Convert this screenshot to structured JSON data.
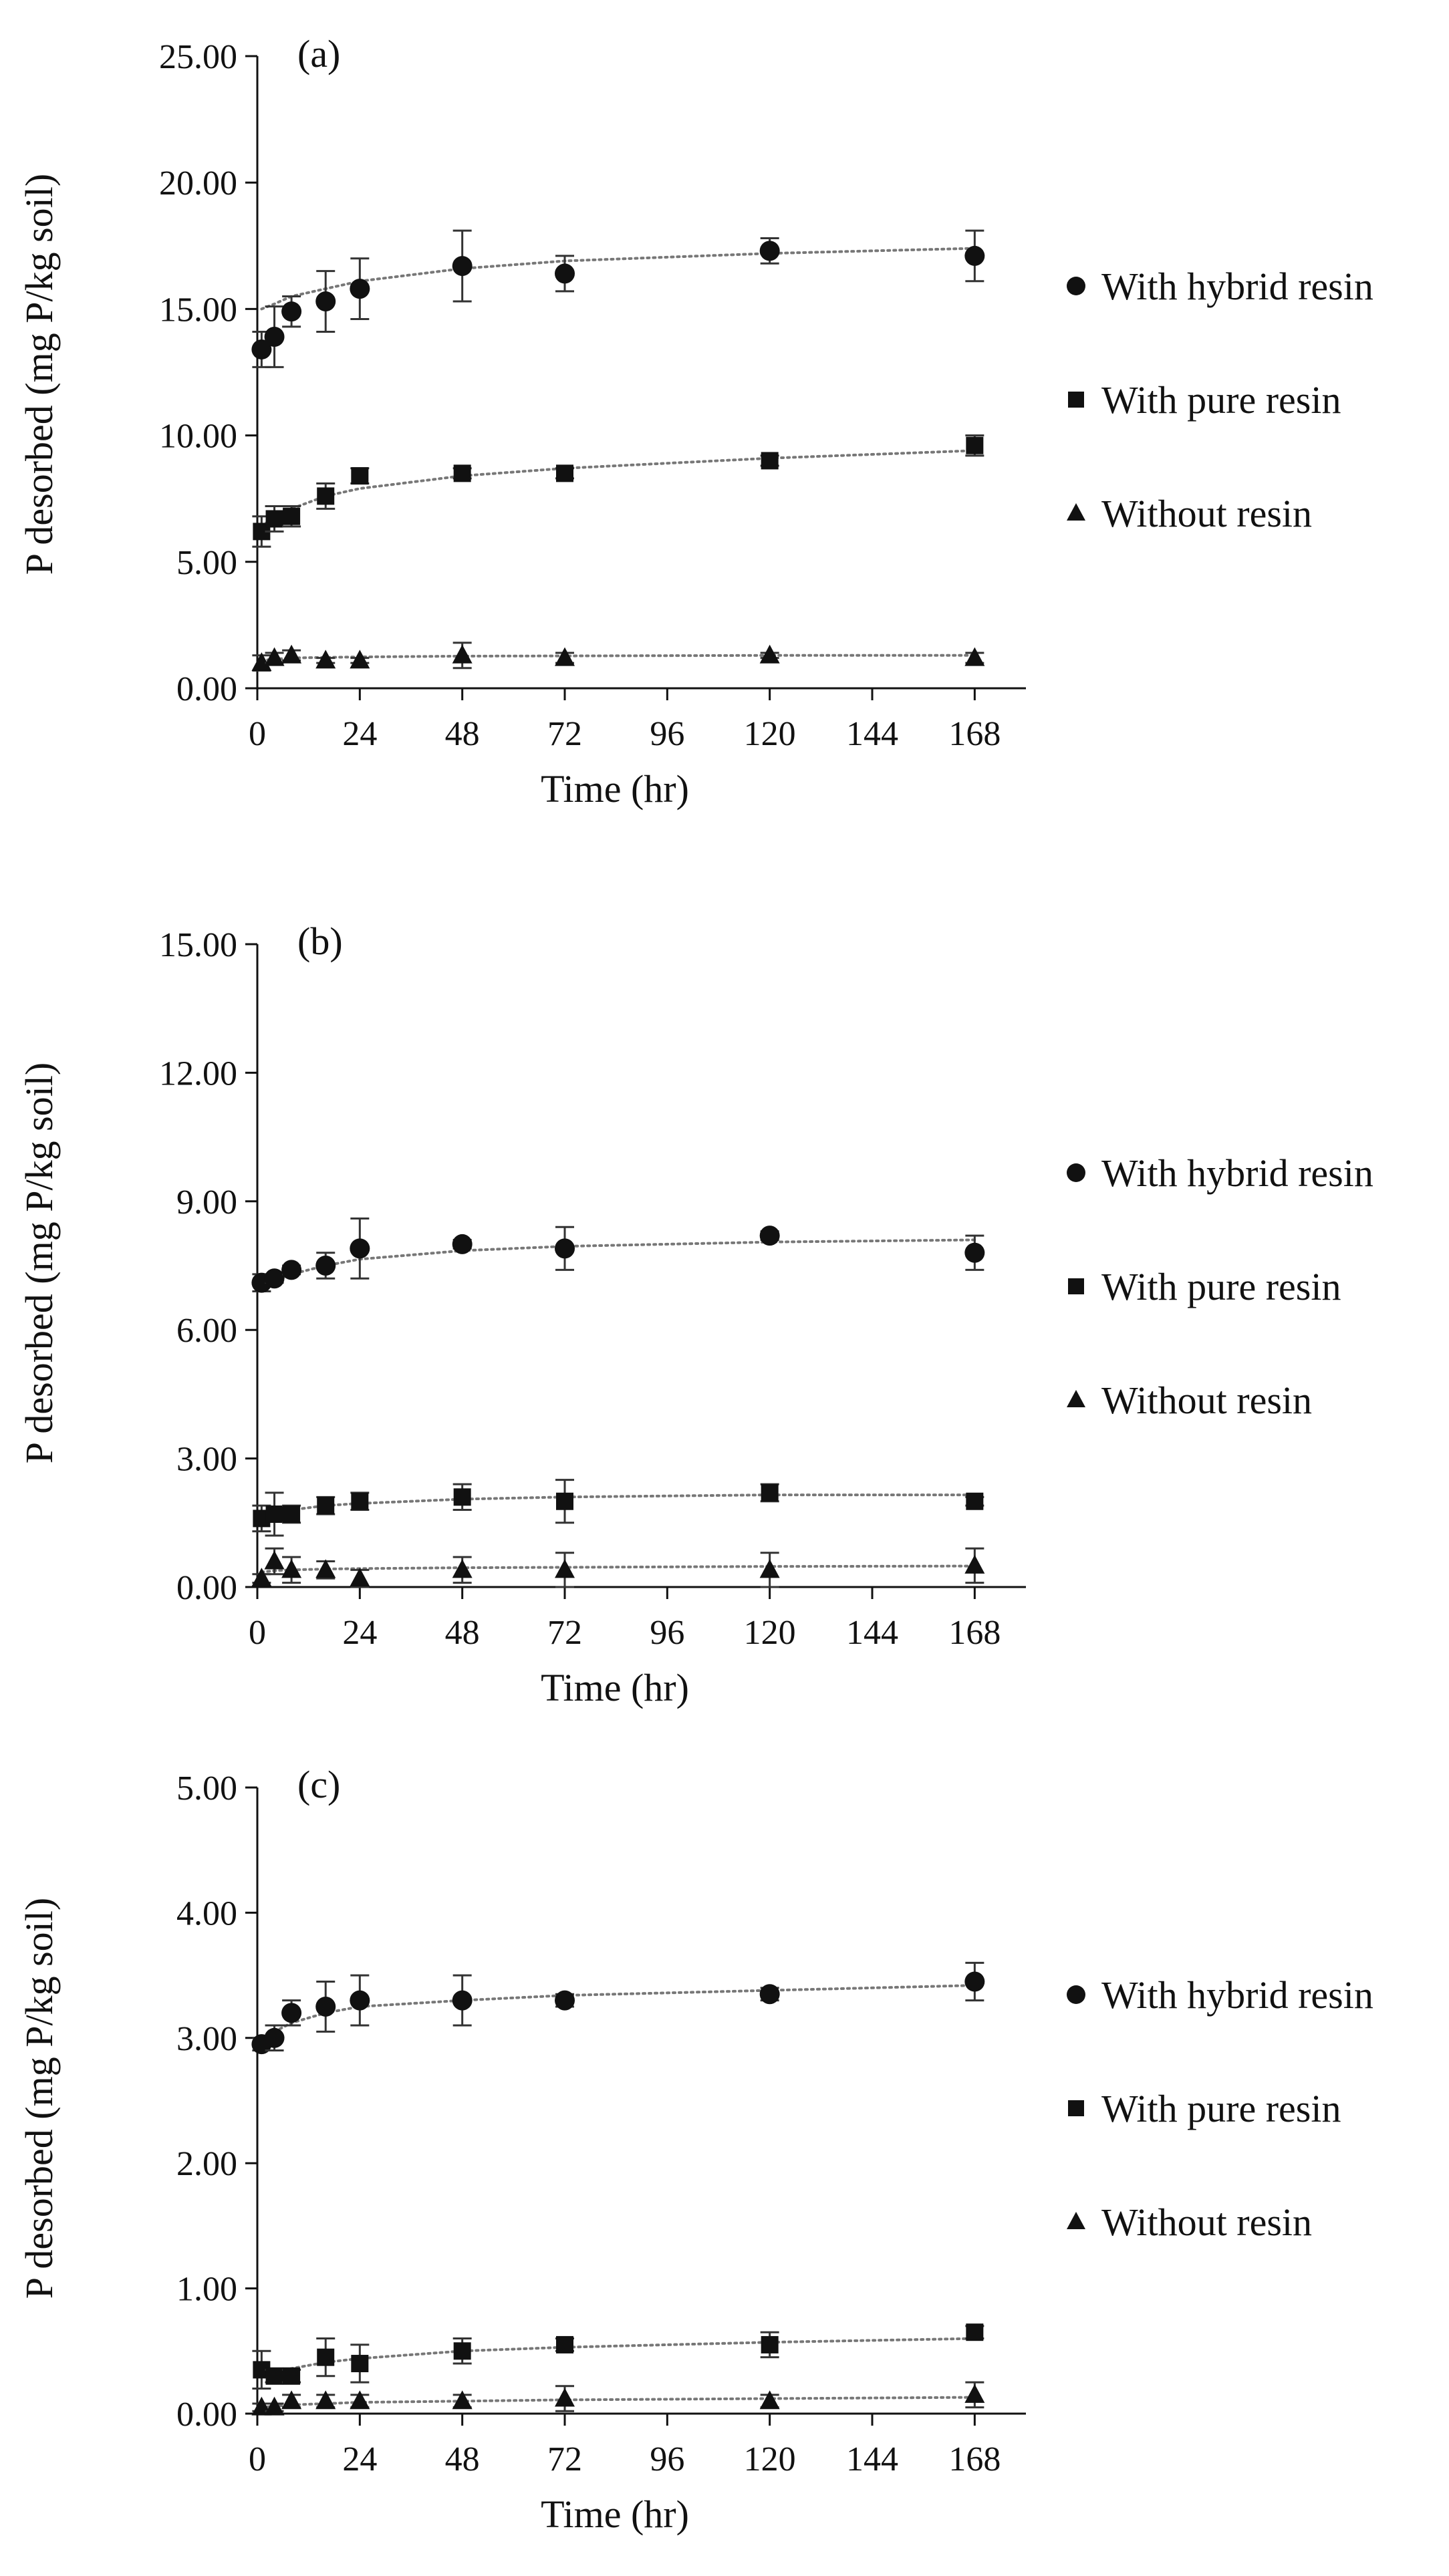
{
  "chart_data": [
    {
      "type": "scatter",
      "title": "(a)",
      "xlabel": "Time (hr)",
      "ylabel": "P desorbed (mg P/kg soil)",
      "xlim": [
        0,
        180
      ],
      "ylim": [
        0,
        25
      ],
      "xticks": [
        "0",
        "24",
        "48",
        "72",
        "96",
        "120",
        "144",
        "168"
      ],
      "yticks": [
        "0.00",
        "5.00",
        "10.00",
        "15.00",
        "20.00",
        "25.00"
      ],
      "grid": false,
      "legend_position": "right",
      "series": [
        {
          "name": "With hybrid resin",
          "marker": "circle",
          "x": [
            1,
            4,
            8,
            16,
            24,
            48,
            72,
            120,
            168
          ],
          "y": [
            13.4,
            13.9,
            14.9,
            15.3,
            15.8,
            16.7,
            16.4,
            17.3,
            17.1
          ],
          "err": [
            0.7,
            1.2,
            0.6,
            1.2,
            1.2,
            1.4,
            0.7,
            0.5,
            1.0
          ],
          "trend": [
            15.0,
            15.2,
            15.5,
            15.8,
            16.1,
            16.6,
            16.9,
            17.2,
            17.4
          ]
        },
        {
          "name": "With pure resin",
          "marker": "square",
          "x": [
            1,
            4,
            8,
            16,
            24,
            48,
            72,
            120,
            168
          ],
          "y": [
            6.2,
            6.7,
            6.8,
            7.6,
            8.4,
            8.5,
            8.5,
            9.0,
            9.6
          ],
          "err": [
            0.6,
            0.5,
            0.4,
            0.5,
            0.3,
            0.2,
            0.2,
            0.2,
            0.4
          ],
          "trend": [
            6.4,
            6.8,
            7.1,
            7.6,
            7.9,
            8.4,
            8.7,
            9.1,
            9.4
          ]
        },
        {
          "name": "Without resin",
          "marker": "triangle",
          "x": [
            1,
            4,
            8,
            16,
            24,
            48,
            72,
            120,
            168
          ],
          "y": [
            1.0,
            1.2,
            1.3,
            1.1,
            1.1,
            1.3,
            1.2,
            1.3,
            1.2
          ],
          "err": [
            0.3,
            0.2,
            0.2,
            0.1,
            0.1,
            0.5,
            0.2,
            0.1,
            0.2
          ],
          "trend": [
            1.1,
            1.15,
            1.2,
            1.22,
            1.24,
            1.27,
            1.28,
            1.3,
            1.3
          ]
        }
      ]
    },
    {
      "type": "scatter",
      "title": "(b)",
      "xlabel": "Time (hr)",
      "ylabel": "P desorbed (mg P/kg soil)",
      "xlim": [
        0,
        180
      ],
      "ylim": [
        0,
        15
      ],
      "xticks": [
        "0",
        "24",
        "48",
        "72",
        "96",
        "120",
        "144",
        "168"
      ],
      "yticks": [
        "0.00",
        "3.00",
        "6.00",
        "9.00",
        "12.00",
        "15.00"
      ],
      "grid": false,
      "legend_position": "right",
      "series": [
        {
          "name": "With hybrid resin",
          "marker": "circle",
          "x": [
            1,
            4,
            8,
            16,
            24,
            48,
            72,
            120,
            168
          ],
          "y": [
            7.1,
            7.2,
            7.4,
            7.5,
            7.9,
            8.0,
            7.9,
            8.2,
            7.8
          ],
          "err": [
            0.2,
            0.1,
            0.1,
            0.3,
            0.7,
            0.1,
            0.5,
            0.1,
            0.4
          ],
          "trend": [
            7.0,
            7.15,
            7.3,
            7.5,
            7.65,
            7.85,
            7.95,
            8.05,
            8.1
          ]
        },
        {
          "name": "With pure resin",
          "marker": "square",
          "x": [
            1,
            4,
            8,
            16,
            24,
            48,
            72,
            120,
            168
          ],
          "y": [
            1.6,
            1.7,
            1.7,
            1.9,
            2.0,
            2.1,
            2.0,
            2.2,
            2.0
          ],
          "err": [
            0.3,
            0.5,
            0.2,
            0.2,
            0.2,
            0.3,
            0.5,
            0.2,
            0.1
          ],
          "trend": [
            1.6,
            1.7,
            1.8,
            1.9,
            1.95,
            2.05,
            2.1,
            2.15,
            2.15
          ]
        },
        {
          "name": "Without resin",
          "marker": "triangle",
          "x": [
            1,
            4,
            8,
            16,
            24,
            48,
            72,
            120,
            168
          ],
          "y": [
            0.2,
            0.6,
            0.4,
            0.4,
            0.2,
            0.4,
            0.4,
            0.4,
            0.5
          ],
          "err": [
            0.1,
            0.3,
            0.3,
            0.2,
            0.2,
            0.3,
            0.4,
            0.4,
            0.4
          ],
          "trend": [
            0.35,
            0.38,
            0.4,
            0.42,
            0.43,
            0.45,
            0.46,
            0.48,
            0.49
          ]
        }
      ]
    },
    {
      "type": "scatter",
      "title": "(c)",
      "xlabel": "Time (hr)",
      "ylabel": "P desorbed (mg P/kg soil)",
      "xlim": [
        0,
        180
      ],
      "ylim": [
        0,
        5
      ],
      "xticks": [
        "0",
        "24",
        "48",
        "72",
        "96",
        "120",
        "144",
        "168"
      ],
      "yticks": [
        "0.00",
        "1.00",
        "2.00",
        "3.00",
        "4.00",
        "5.00"
      ],
      "grid": false,
      "legend_position": "right",
      "series": [
        {
          "name": "With hybrid resin",
          "marker": "circle",
          "x": [
            1,
            4,
            8,
            16,
            24,
            48,
            72,
            120,
            168
          ],
          "y": [
            2.95,
            3.0,
            3.2,
            3.25,
            3.3,
            3.3,
            3.3,
            3.35,
            3.45
          ],
          "err": [
            0.05,
            0.1,
            0.1,
            0.2,
            0.2,
            0.2,
            0.05,
            0.05,
            0.15
          ],
          "trend": [
            2.95,
            3.05,
            3.12,
            3.2,
            3.25,
            3.3,
            3.34,
            3.38,
            3.42
          ]
        },
        {
          "name": "With pure resin",
          "marker": "square",
          "x": [
            1,
            4,
            8,
            16,
            24,
            48,
            72,
            120,
            168
          ],
          "y": [
            0.35,
            0.3,
            0.3,
            0.45,
            0.4,
            0.5,
            0.55,
            0.55,
            0.65
          ],
          "err": [
            0.15,
            0.05,
            0.05,
            0.15,
            0.15,
            0.1,
            0.05,
            0.1,
            0.05
          ],
          "trend": [
            0.3,
            0.33,
            0.36,
            0.41,
            0.44,
            0.5,
            0.53,
            0.57,
            0.6
          ]
        },
        {
          "name": "Without resin",
          "marker": "triangle",
          "x": [
            1,
            4,
            8,
            16,
            24,
            48,
            72,
            120,
            168
          ],
          "y": [
            0.05,
            0.05,
            0.1,
            0.1,
            0.1,
            0.1,
            0.12,
            0.1,
            0.15
          ],
          "err": [
            0.03,
            0.03,
            0.05,
            0.05,
            0.05,
            0.05,
            0.1,
            0.05,
            0.1
          ],
          "trend": [
            0.05,
            0.06,
            0.07,
            0.08,
            0.09,
            0.1,
            0.11,
            0.12,
            0.13
          ]
        }
      ]
    }
  ]
}
